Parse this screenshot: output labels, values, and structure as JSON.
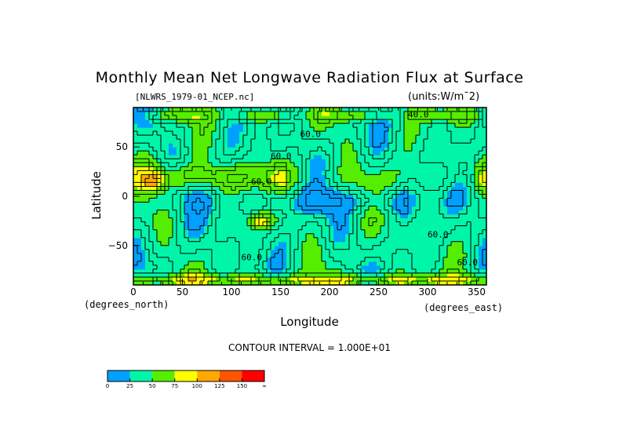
{
  "chart_data": {
    "type": "heatmap",
    "title": "Monthly Mean Net Longwave Radiation Flux at Surface",
    "file_label": "[NLWRS_1979-01_NCEP.nc]",
    "units_label": "(units:W/m¯2)",
    "xlabel": "Longitude",
    "ylabel": "Latitude",
    "x_units_note": "(degrees_east)",
    "y_units_note": "(degrees_north)",
    "xlim": [
      0,
      360
    ],
    "ylim": [
      -90,
      90
    ],
    "x_ticks": [
      "0",
      "50",
      "100",
      "150",
      "200",
      "250",
      "300",
      "350"
    ],
    "y_ticks": [
      "50",
      "0",
      "−50"
    ],
    "contour_interval_text": "CONTOUR INTERVAL = 1.000E+01",
    "contour_labels": [
      "40.0",
      "60.0",
      "60.0",
      "60.0",
      "60.0",
      "60.0",
      "60.0"
    ],
    "colorbar": {
      "labels": [
        "0",
        "25",
        "50",
        "75",
        "100",
        "125",
        "150",
        "∞"
      ],
      "colors": [
        "#00a0ff",
        "#00f5a8",
        "#55ee00",
        "#ffff00",
        "#ffa800",
        "#ff5500",
        "#ff0000"
      ]
    }
  }
}
